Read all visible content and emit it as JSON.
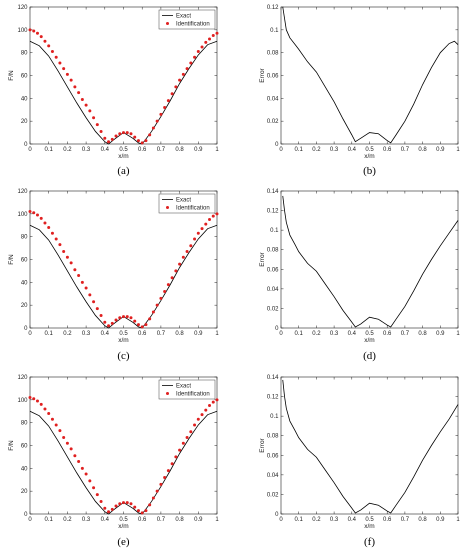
{
  "chart_data": [
    {
      "panel": "(a)",
      "type": "line",
      "xlabel": "x/m",
      "ylabel": "F/N",
      "xlim": [
        0,
        1
      ],
      "ylim": [
        0,
        120
      ],
      "xticks": [
        "0",
        "0.1",
        "0.2",
        "0.3",
        "0.4",
        "0.5",
        "0.6",
        "0.7",
        "0.8",
        "0.9",
        "1"
      ],
      "yticks": [
        "0",
        "20",
        "40",
        "60",
        "80",
        "100",
        "120"
      ],
      "legend": [
        "Exact",
        "Identification"
      ],
      "legend_position": "top-right",
      "series": [
        {
          "name": "Exact",
          "style": "line",
          "color": "#000000",
          "x": [
            0,
            0.05,
            0.1,
            0.15,
            0.2,
            0.25,
            0.3,
            0.35,
            0.4,
            0.42,
            0.45,
            0.5,
            0.55,
            0.58,
            0.6,
            0.65,
            0.7,
            0.75,
            0.8,
            0.85,
            0.9,
            0.95,
            1
          ],
          "y": [
            90,
            86,
            77,
            64,
            50,
            36,
            23,
            11,
            2,
            0,
            4,
            10,
            5,
            1,
            0,
            11,
            24,
            38,
            53,
            66,
            78,
            87,
            90
          ]
        },
        {
          "name": "Identification",
          "style": "markers",
          "color": "#e02020",
          "x": [
            0,
            0.02,
            0.04,
            0.06,
            0.08,
            0.1,
            0.12,
            0.14,
            0.16,
            0.18,
            0.2,
            0.22,
            0.24,
            0.26,
            0.28,
            0.3,
            0.32,
            0.34,
            0.36,
            0.38,
            0.4,
            0.42,
            0.44,
            0.46,
            0.48,
            0.5,
            0.52,
            0.54,
            0.56,
            0.58,
            0.6,
            0.62,
            0.64,
            0.66,
            0.68,
            0.7,
            0.72,
            0.74,
            0.76,
            0.78,
            0.8,
            0.82,
            0.84,
            0.86,
            0.88,
            0.9,
            0.92,
            0.94,
            0.96,
            0.98,
            1
          ],
          "y": [
            100,
            99,
            97,
            94,
            90,
            86,
            81,
            76,
            71,
            66,
            61,
            56,
            50,
            45,
            39,
            34,
            29,
            23,
            17,
            11,
            5,
            2,
            4,
            7,
            9,
            10,
            10,
            9,
            6,
            3,
            1,
            3,
            8,
            14,
            20,
            26,
            32,
            38,
            44,
            50,
            56,
            61,
            66,
            71,
            76,
            81,
            85,
            89,
            92,
            95,
            97
          ]
        }
      ]
    },
    {
      "panel": "(b)",
      "type": "line",
      "xlabel": "x/m",
      "ylabel": "Error",
      "xlim": [
        0,
        1
      ],
      "ylim": [
        0,
        0.12
      ],
      "xticks": [
        "0",
        "0.1",
        "0.2",
        "0.3",
        "0.4",
        "0.5",
        "0.6",
        "0.7",
        "0.8",
        "0.9",
        "1"
      ],
      "yticks": [
        "0",
        "0.02",
        "0.04",
        "0.06",
        "0.08",
        "0.1",
        "0.12"
      ],
      "series": [
        {
          "style": "line",
          "color": "#000000",
          "x": [
            0.01,
            0.02,
            0.03,
            0.05,
            0.08,
            0.1,
            0.15,
            0.2,
            0.25,
            0.3,
            0.35,
            0.4,
            0.42,
            0.45,
            0.5,
            0.55,
            0.6,
            0.62,
            0.65,
            0.7,
            0.75,
            0.8,
            0.85,
            0.9,
            0.95,
            0.98,
            1
          ],
          "y": [
            0.12,
            0.11,
            0.1,
            0.093,
            0.087,
            0.083,
            0.072,
            0.063,
            0.05,
            0.037,
            0.022,
            0.008,
            0.002,
            0.005,
            0.01,
            0.009,
            0.003,
            0.001,
            0.008,
            0.02,
            0.035,
            0.052,
            0.067,
            0.08,
            0.088,
            0.09,
            0.087
          ]
        }
      ]
    },
    {
      "panel": "(c)",
      "type": "line",
      "xlabel": "x/m",
      "ylabel": "F/N",
      "xlim": [
        0,
        1
      ],
      "ylim": [
        0,
        120
      ],
      "xticks": [
        "0",
        "0.1",
        "0.2",
        "0.3",
        "0.4",
        "0.5",
        "0.6",
        "0.7",
        "0.8",
        "0.9",
        "1"
      ],
      "yticks": [
        "0",
        "20",
        "40",
        "60",
        "80",
        "100",
        "120"
      ],
      "legend": [
        "Exact",
        "Identification"
      ],
      "legend_position": "top-right",
      "series": [
        {
          "name": "Exact",
          "style": "line",
          "color": "#000000",
          "x": [
            0,
            0.05,
            0.1,
            0.15,
            0.2,
            0.25,
            0.3,
            0.35,
            0.4,
            0.42,
            0.45,
            0.5,
            0.55,
            0.58,
            0.6,
            0.65,
            0.7,
            0.75,
            0.8,
            0.85,
            0.9,
            0.95,
            1
          ],
          "y": [
            90,
            86,
            77,
            64,
            50,
            36,
            23,
            11,
            2,
            0,
            4,
            10,
            5,
            1,
            0,
            11,
            24,
            38,
            53,
            66,
            78,
            87,
            90
          ]
        },
        {
          "name": "Identification",
          "style": "markers",
          "color": "#e02020",
          "x": [
            0,
            0.02,
            0.04,
            0.06,
            0.08,
            0.1,
            0.12,
            0.14,
            0.16,
            0.18,
            0.2,
            0.22,
            0.24,
            0.26,
            0.28,
            0.3,
            0.32,
            0.34,
            0.36,
            0.38,
            0.4,
            0.42,
            0.44,
            0.46,
            0.48,
            0.5,
            0.52,
            0.54,
            0.56,
            0.58,
            0.6,
            0.62,
            0.64,
            0.66,
            0.68,
            0.7,
            0.72,
            0.74,
            0.76,
            0.78,
            0.8,
            0.82,
            0.84,
            0.86,
            0.88,
            0.9,
            0.92,
            0.94,
            0.96,
            0.98,
            1
          ],
          "y": [
            102,
            101,
            99,
            96,
            92,
            88,
            83,
            78,
            73,
            67,
            62,
            57,
            51,
            46,
            40,
            35,
            29,
            23,
            17,
            11,
            5,
            2,
            4,
            7,
            9,
            10,
            10,
            9,
            6,
            3,
            1,
            3,
            8,
            14,
            20,
            26,
            32,
            38,
            44,
            50,
            56,
            62,
            67,
            72,
            78,
            83,
            87,
            91,
            95,
            98,
            100
          ]
        }
      ]
    },
    {
      "panel": "(d)",
      "type": "line",
      "xlabel": "x/m",
      "ylabel": "Error",
      "xlim": [
        0,
        1
      ],
      "ylim": [
        0,
        0.14
      ],
      "xticks": [
        "0",
        "0.1",
        "0.2",
        "0.3",
        "0.4",
        "0.5",
        "0.6",
        "0.7",
        "0.8",
        "0.9",
        "1"
      ],
      "yticks": [
        "0",
        "0.02",
        "0.04",
        "0.06",
        "0.08",
        "0.1",
        "0.12",
        "0.14"
      ],
      "series": [
        {
          "style": "line",
          "color": "#000000",
          "x": [
            0.01,
            0.02,
            0.03,
            0.05,
            0.08,
            0.1,
            0.15,
            0.2,
            0.25,
            0.3,
            0.35,
            0.4,
            0.42,
            0.45,
            0.5,
            0.55,
            0.6,
            0.62,
            0.65,
            0.7,
            0.75,
            0.8,
            0.85,
            0.9,
            0.95,
            1
          ],
          "y": [
            0.135,
            0.12,
            0.108,
            0.095,
            0.085,
            0.078,
            0.066,
            0.058,
            0.045,
            0.032,
            0.018,
            0.006,
            0.001,
            0.004,
            0.011,
            0.009,
            0.003,
            0.001,
            0.009,
            0.022,
            0.038,
            0.055,
            0.07,
            0.084,
            0.097,
            0.11
          ]
        }
      ]
    },
    {
      "panel": "(e)",
      "type": "line",
      "xlabel": "x/m",
      "ylabel": "F/N",
      "xlim": [
        0,
        1
      ],
      "ylim": [
        0,
        120
      ],
      "xticks": [
        "0",
        "0.1",
        "0.2",
        "0.3",
        "0.4",
        "0.5",
        "0.6",
        "0.7",
        "0.8",
        "0.9",
        "1"
      ],
      "yticks": [
        "0",
        "20",
        "40",
        "60",
        "80",
        "100",
        "120"
      ],
      "legend": [
        "Exact",
        "Identification"
      ],
      "legend_position": "top-right",
      "series": [
        {
          "name": "Exact",
          "style": "line",
          "color": "#000000",
          "x": [
            0,
            0.05,
            0.1,
            0.15,
            0.2,
            0.25,
            0.3,
            0.35,
            0.4,
            0.42,
            0.45,
            0.5,
            0.55,
            0.58,
            0.6,
            0.65,
            0.7,
            0.75,
            0.8,
            0.85,
            0.9,
            0.95,
            1
          ],
          "y": [
            90,
            86,
            77,
            64,
            50,
            36,
            23,
            11,
            2,
            0,
            4,
            10,
            5,
            1,
            0,
            11,
            24,
            38,
            53,
            66,
            78,
            87,
            90
          ]
        },
        {
          "name": "Identification",
          "style": "markers",
          "color": "#e02020",
          "x": [
            0,
            0.02,
            0.04,
            0.06,
            0.08,
            0.1,
            0.12,
            0.14,
            0.16,
            0.18,
            0.2,
            0.22,
            0.24,
            0.26,
            0.28,
            0.3,
            0.32,
            0.34,
            0.36,
            0.38,
            0.4,
            0.42,
            0.44,
            0.46,
            0.48,
            0.5,
            0.52,
            0.54,
            0.56,
            0.58,
            0.6,
            0.62,
            0.64,
            0.66,
            0.68,
            0.7,
            0.72,
            0.74,
            0.76,
            0.78,
            0.8,
            0.82,
            0.84,
            0.86,
            0.88,
            0.9,
            0.92,
            0.94,
            0.96,
            0.98,
            1
          ],
          "y": [
            102,
            101,
            99,
            96,
            92,
            88,
            83,
            78,
            73,
            67,
            62,
            57,
            51,
            46,
            40,
            35,
            29,
            23,
            17,
            11,
            5,
            2,
            4,
            7,
            9,
            10,
            10,
            9,
            6,
            3,
            1,
            3,
            8,
            14,
            20,
            26,
            32,
            38,
            44,
            50,
            56,
            62,
            67,
            72,
            78,
            83,
            87,
            91,
            95,
            98,
            100
          ]
        }
      ]
    },
    {
      "panel": "(f)",
      "type": "line",
      "xlabel": "x/m",
      "ylabel": "Error",
      "xlim": [
        0,
        1
      ],
      "ylim": [
        0,
        0.14
      ],
      "xticks": [
        "0",
        "0.1",
        "0.2",
        "0.3",
        "0.4",
        "0.5",
        "0.6",
        "0.7",
        "0.8",
        "0.9",
        "1"
      ],
      "yticks": [
        "0",
        "0.02",
        "0.04",
        "0.06",
        "0.08",
        "0.1",
        "0.12",
        "0.14"
      ],
      "series": [
        {
          "style": "line",
          "color": "#000000",
          "x": [
            0.01,
            0.02,
            0.03,
            0.05,
            0.08,
            0.1,
            0.15,
            0.2,
            0.25,
            0.3,
            0.35,
            0.4,
            0.42,
            0.45,
            0.5,
            0.55,
            0.6,
            0.62,
            0.65,
            0.7,
            0.75,
            0.8,
            0.85,
            0.9,
            0.95,
            1
          ],
          "y": [
            0.137,
            0.12,
            0.108,
            0.095,
            0.085,
            0.078,
            0.066,
            0.058,
            0.045,
            0.032,
            0.018,
            0.006,
            0.001,
            0.004,
            0.011,
            0.009,
            0.003,
            0.001,
            0.009,
            0.022,
            0.038,
            0.055,
            0.07,
            0.084,
            0.097,
            0.112
          ]
        }
      ]
    }
  ]
}
